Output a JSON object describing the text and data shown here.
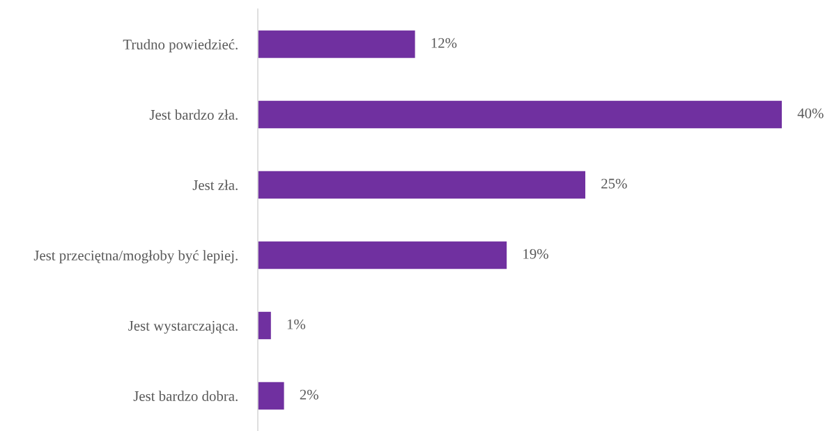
{
  "chart_data": {
    "type": "bar",
    "orientation": "horizontal",
    "categories": [
      "Trudno powiedzieć.",
      "Jest bardzo zła.",
      "Jest zła.",
      "Jest przeciętna/mogłoby być lepiej.",
      "Jest wystarczająca.",
      "Jest bardzo dobra."
    ],
    "values": [
      12,
      40,
      25,
      19,
      1,
      2
    ],
    "value_labels": [
      "12%",
      "40%",
      "25%",
      "19%",
      "1%",
      "2%"
    ],
    "color": "#7030a0",
    "xlim": [
      0,
      40
    ],
    "tick_labels": "y",
    "grid": false,
    "legend": false
  }
}
